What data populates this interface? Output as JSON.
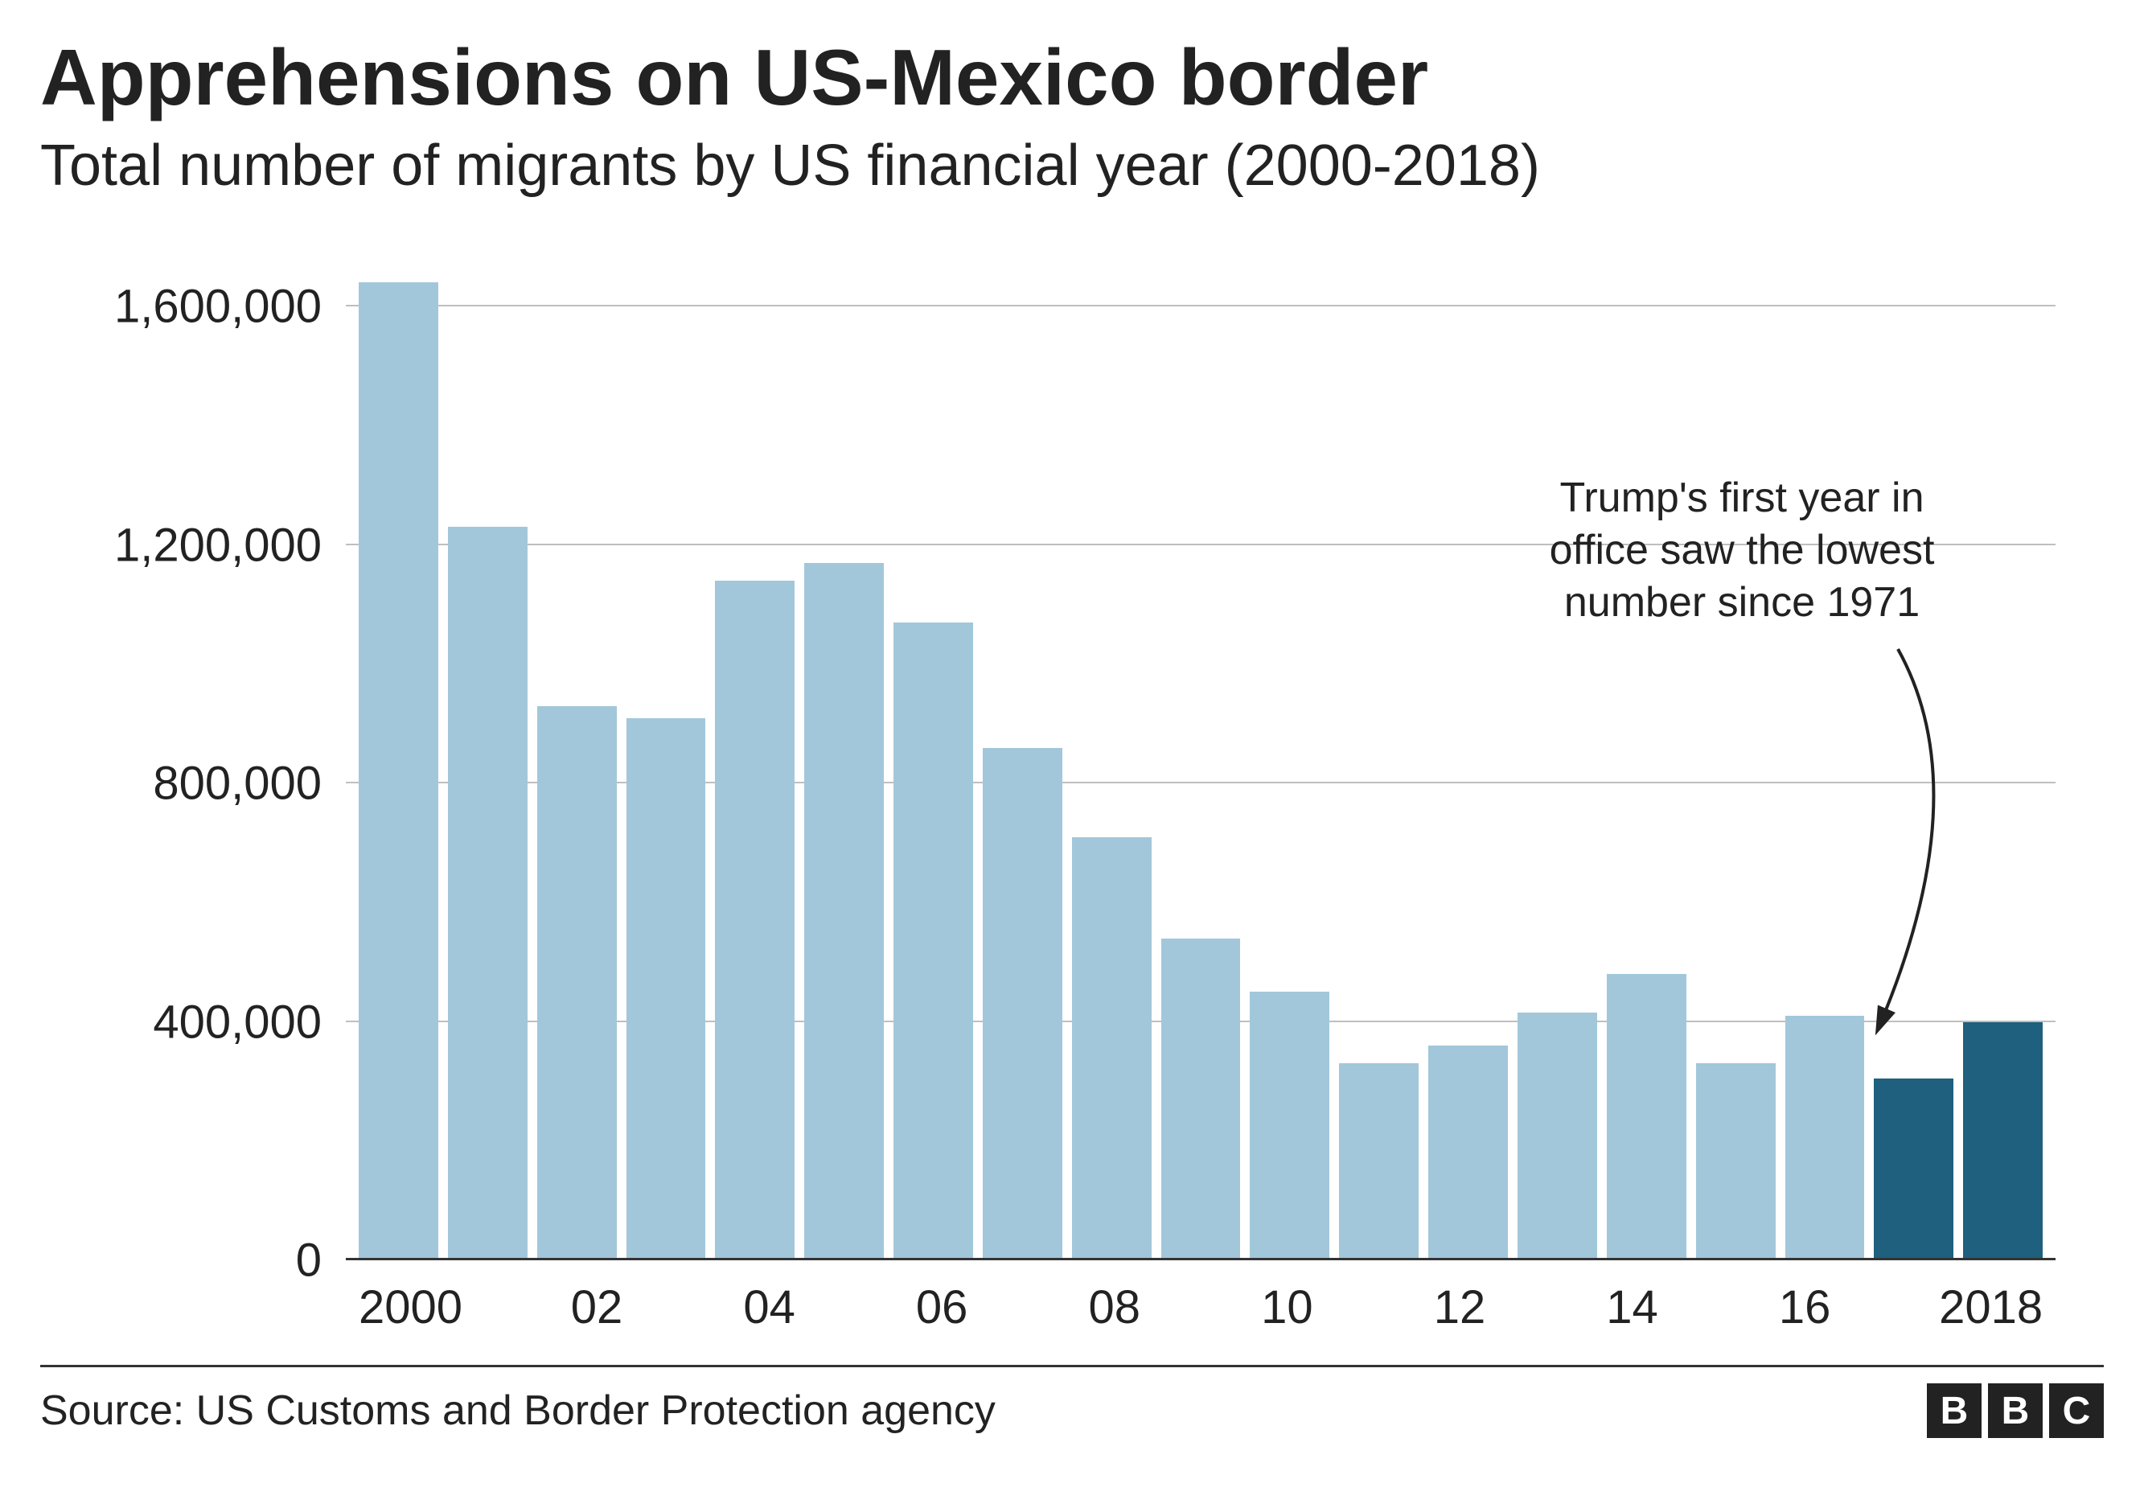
{
  "title": "Apprehensions on US-Mexico border",
  "subtitle": "Total number of migrants by US financial year (2000-2018)",
  "chart": {
    "type": "bar",
    "ylim": [
      0,
      1700000
    ],
    "yticks": [
      0,
      400000,
      800000,
      1200000,
      1600000
    ],
    "ytick_labels": [
      "0",
      "400,000",
      "800,000",
      "1,200,000",
      "1,600,000"
    ],
    "years": [
      2000,
      2001,
      2002,
      2003,
      2004,
      2005,
      2006,
      2007,
      2008,
      2009,
      2010,
      2011,
      2012,
      2013,
      2014,
      2015,
      2016,
      2017,
      2018
    ],
    "values": [
      1640000,
      1230000,
      930000,
      910000,
      1140000,
      1170000,
      1070000,
      860000,
      710000,
      540000,
      450000,
      330000,
      360000,
      415000,
      480000,
      330000,
      410000,
      305000,
      400000
    ],
    "bar_colors": [
      "#a2c7da",
      "#a2c7da",
      "#a2c7da",
      "#a2c7da",
      "#a2c7da",
      "#a2c7da",
      "#a2c7da",
      "#a2c7da",
      "#a2c7da",
      "#a2c7da",
      "#a2c7da",
      "#a2c7da",
      "#a2c7da",
      "#a2c7da",
      "#a2c7da",
      "#a2c7da",
      "#a2c7da",
      "#1e607e",
      "#1e607e"
    ],
    "xtick_labels": [
      "2000",
      "",
      "02",
      "",
      "04",
      "",
      "06",
      "",
      "08",
      "",
      "10",
      "",
      "12",
      "",
      "14",
      "",
      "16",
      "",
      "2018"
    ],
    "grid_color": "#bfbfbf",
    "baseline_color": "#333333",
    "background_color": "#ffffff",
    "bar_width_ratio": 0.88,
    "axis_fontsize": 58,
    "annotation": {
      "text_lines": [
        "Trump's first year in",
        "office saw the lowest",
        "number since 1971"
      ],
      "fontsize": 52,
      "arrow_color": "#222222"
    }
  },
  "source": "Source: US Customs and Border Protection agency",
  "logo": {
    "letters": [
      "B",
      "B",
      "C"
    ]
  }
}
